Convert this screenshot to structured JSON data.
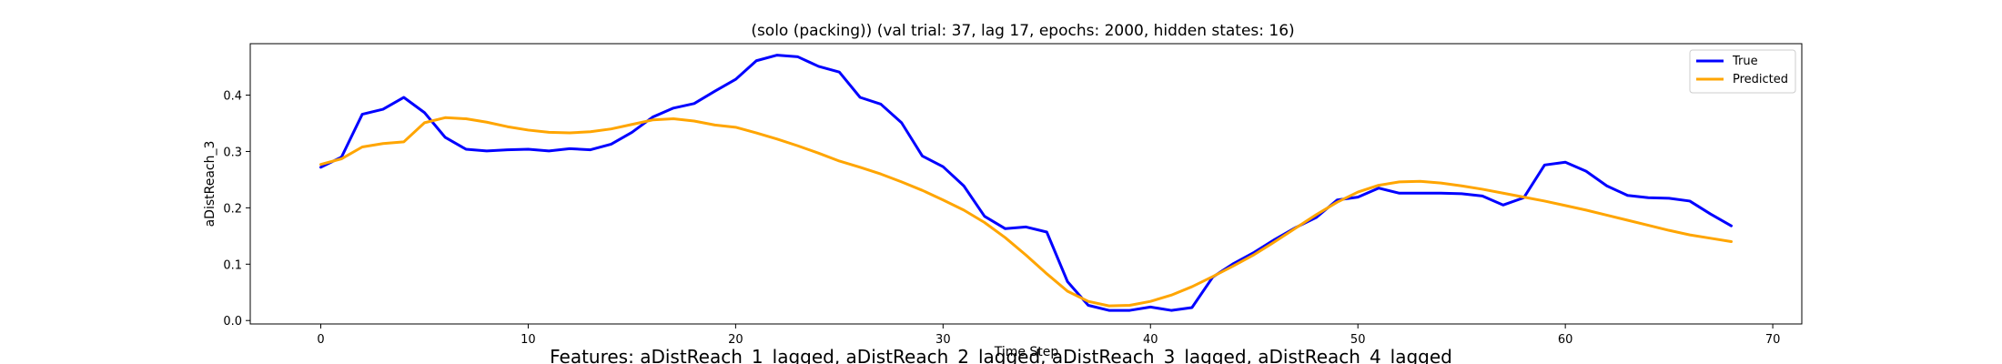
{
  "chart_data": {
    "type": "line",
    "title": "(solo (packing)) (val trial: 37, lag 17, epochs: 2000, hidden states: 16)",
    "xlabel": "Time Step",
    "ylabel": "aDistReach_3",
    "features_caption": "Features: aDistReach_1_lagged, aDistReach_2_lagged, aDistReach_3_lagged, aDistReach_4_lagged",
    "xlim": [
      -3.4,
      71.4
    ],
    "ylim": [
      -0.0061,
      0.4913
    ],
    "xticks": [
      0,
      10,
      20,
      30,
      40,
      50,
      60,
      70
    ],
    "yticks": [
      0.0,
      0.1,
      0.2,
      0.3,
      0.4
    ],
    "ytick_labels": [
      "0.0",
      "0.1",
      "0.2",
      "0.3",
      "0.4"
    ],
    "legend_position": "top-right",
    "grid": false,
    "x": [
      0,
      1,
      2,
      3,
      4,
      5,
      6,
      7,
      8,
      9,
      10,
      11,
      12,
      13,
      14,
      15,
      16,
      17,
      18,
      19,
      20,
      21,
      22,
      23,
      24,
      25,
      26,
      27,
      28,
      29,
      30,
      31,
      32,
      33,
      34,
      35,
      36,
      37,
      38,
      39,
      40,
      41,
      42,
      43,
      44,
      45,
      46,
      47,
      48,
      49,
      50,
      51,
      52,
      53,
      54,
      55,
      56,
      57,
      58,
      59,
      60,
      61,
      62,
      63,
      64,
      65,
      66,
      67,
      68
    ],
    "series": [
      {
        "name": "True",
        "color": "#0000ff",
        "values": [
          0.272,
          0.29,
          0.366,
          0.375,
          0.396,
          0.369,
          0.325,
          0.304,
          0.301,
          0.303,
          0.304,
          0.301,
          0.305,
          0.303,
          0.313,
          0.334,
          0.361,
          0.377,
          0.385,
          0.407,
          0.428,
          0.461,
          0.471,
          0.468,
          0.451,
          0.441,
          0.396,
          0.384,
          0.351,
          0.292,
          0.273,
          0.239,
          0.185,
          0.163,
          0.166,
          0.157,
          0.069,
          0.027,
          0.018,
          0.018,
          0.024,
          0.018,
          0.023,
          0.077,
          0.101,
          0.121,
          0.144,
          0.165,
          0.183,
          0.214,
          0.219,
          0.235,
          0.226,
          0.226,
          0.226,
          0.225,
          0.221,
          0.205,
          0.218,
          0.276,
          0.281,
          0.265,
          0.239,
          0.222,
          0.218,
          0.217,
          0.212,
          0.189,
          0.168
        ]
      },
      {
        "name": "Predicted",
        "color": "#ffa500",
        "values": [
          0.277,
          0.287,
          0.308,
          0.314,
          0.317,
          0.351,
          0.36,
          0.358,
          0.352,
          0.344,
          0.338,
          0.334,
          0.333,
          0.335,
          0.34,
          0.348,
          0.356,
          0.358,
          0.354,
          0.347,
          0.343,
          0.333,
          0.322,
          0.31,
          0.297,
          0.283,
          0.272,
          0.26,
          0.246,
          0.231,
          0.214,
          0.196,
          0.174,
          0.147,
          0.116,
          0.083,
          0.052,
          0.034,
          0.026,
          0.027,
          0.034,
          0.045,
          0.06,
          0.078,
          0.097,
          0.117,
          0.14,
          0.164,
          0.188,
          0.21,
          0.228,
          0.24,
          0.246,
          0.247,
          0.244,
          0.239,
          0.233,
          0.226,
          0.219,
          0.212,
          0.204,
          0.196,
          0.187,
          0.178,
          0.169,
          0.16,
          0.152,
          0.146,
          0.14
        ]
      }
    ]
  }
}
